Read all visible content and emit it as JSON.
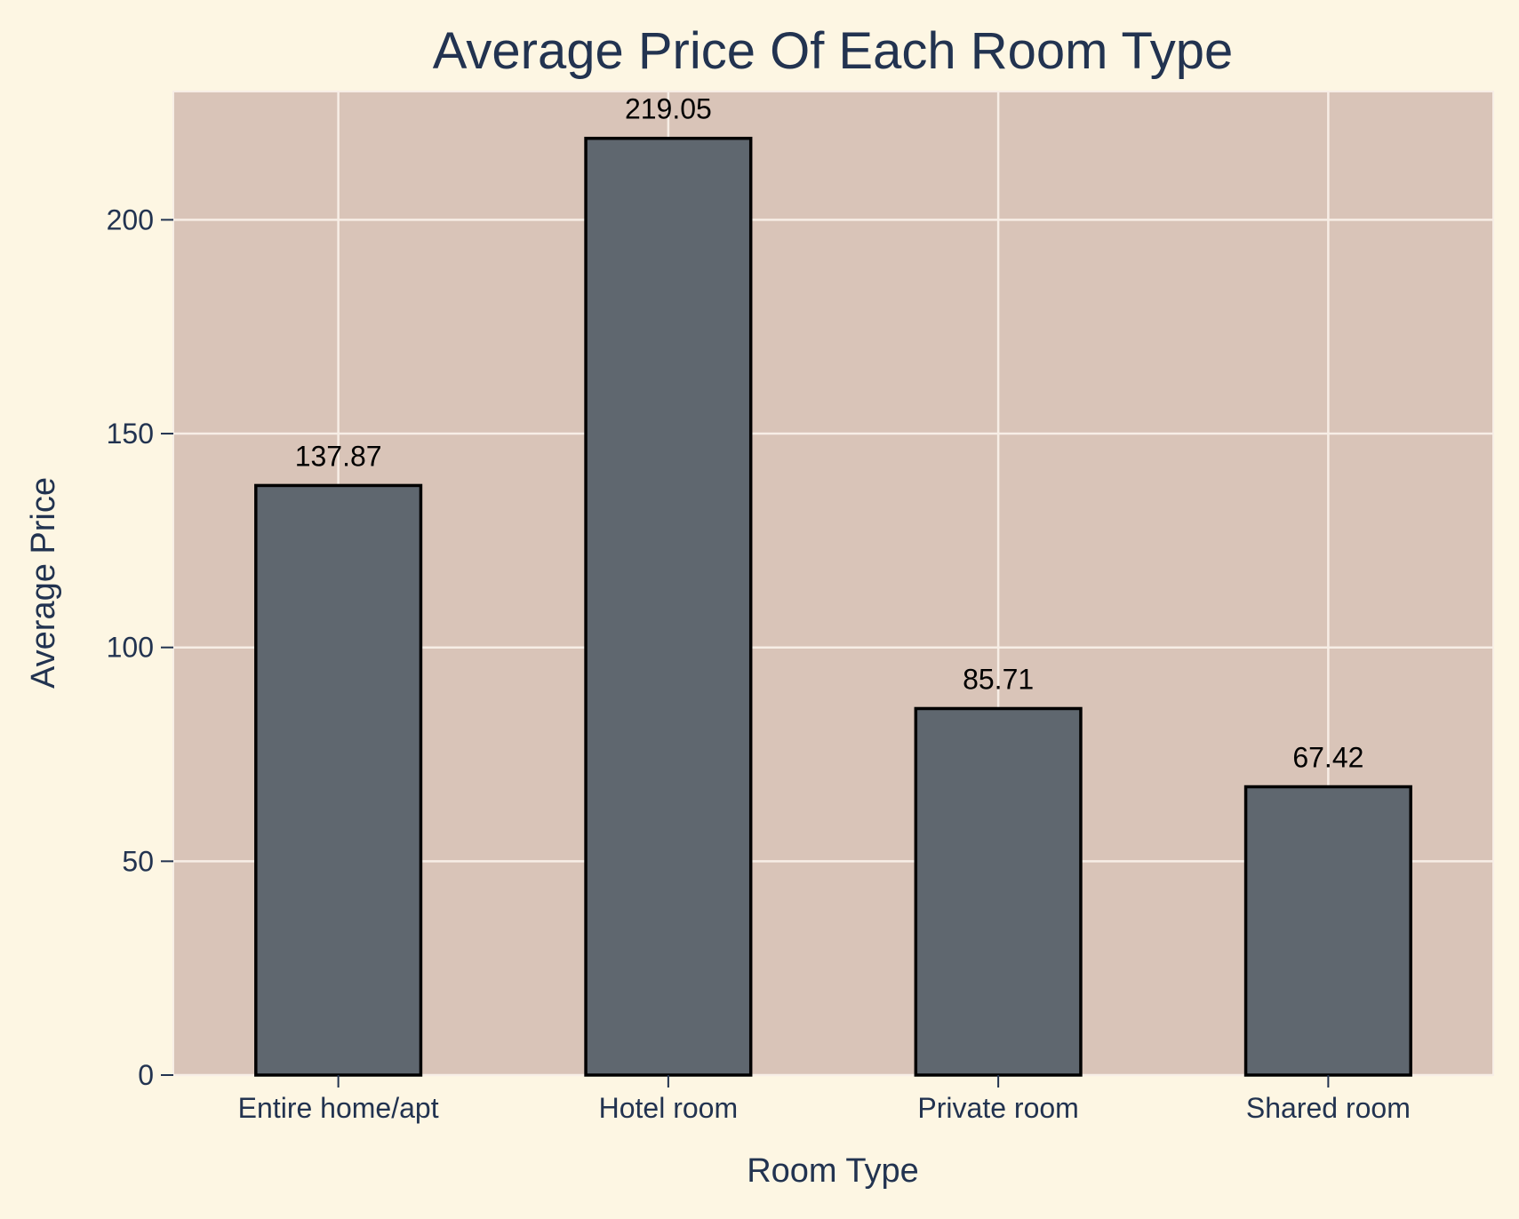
{
  "chart_data": {
    "type": "bar",
    "title": "Average Price Of Each Room Type",
    "xlabel": "Room Type",
    "ylabel": "Average Price",
    "categories": [
      "Entire home/apt",
      "Hotel room",
      "Private room",
      "Shared room"
    ],
    "values": [
      137.87,
      219.05,
      85.71,
      67.42
    ],
    "data_labels": [
      "137.87",
      "219.05",
      "85.71",
      "67.42"
    ],
    "yticks": [
      0,
      50,
      100,
      150,
      200
    ],
    "ylim": [
      0,
      230
    ],
    "grid": true,
    "legend": "none",
    "colors": {
      "figure_background": "#fdf6e3",
      "plot_background": "#d9c4b8",
      "bar_fill": "#5f676f",
      "bar_edge": "#000000",
      "grid": "#f7eee6",
      "text": "#223350",
      "data_label_text": "#000000"
    }
  }
}
